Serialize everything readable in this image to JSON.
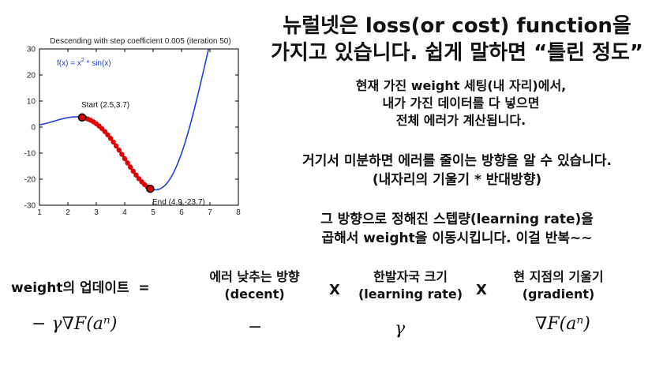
{
  "plot": {
    "title": "Descending with step coefficient 0.005 (iteration 50)",
    "formula_prefix": "f(x) = x",
    "formula_exp": "2",
    "formula_suffix": " * sin(x)",
    "start_label": "Start (2.5,3.7)",
    "end_label": "End (4.9,-23.7)",
    "colors": {
      "curve": "#1f3fd6",
      "path": "#e00000",
      "axis": "#000000",
      "formula": "#1f3fd6"
    }
  },
  "chart_data": {
    "type": "line",
    "title": "Descending with step coefficient 0.005 (iteration 50)",
    "xlim": [
      1,
      8
    ],
    "ylim": [
      -30,
      30
    ],
    "xticks": [
      1,
      2,
      3,
      4,
      5,
      6,
      7,
      8
    ],
    "yticks": [
      30,
      20,
      10,
      0,
      -10,
      -20,
      -30
    ],
    "xtick_labels": [
      "1",
      "2",
      "3",
      "4",
      "5",
      "6",
      "7",
      "8"
    ],
    "ytick_labels": [
      "30",
      "20",
      "10",
      "0",
      "-10",
      "-20",
      "-30"
    ],
    "function": "f(x) = x^2 * sin(x)",
    "start": {
      "x": 2.5,
      "y": 3.7
    },
    "end": {
      "x": 4.9,
      "y": -23.7
    },
    "descent_points_x": [
      2.5,
      2.6,
      2.7,
      2.8,
      2.9,
      3.0,
      3.1,
      3.2,
      3.3,
      3.4,
      3.5,
      3.6,
      3.7,
      3.8,
      3.9,
      4.0,
      4.1,
      4.2,
      4.3,
      4.4,
      4.5,
      4.6,
      4.7,
      4.8,
      4.9
    ]
  },
  "text": {
    "title_line1": "뉴럴넷은 loss(or cost) function을",
    "title_line2": "가지고 있습니다. 쉽게 말하면 “틀린 정도”",
    "p1_line1": "현재 가진 weight 세팅(내 자리)에서,",
    "p1_line2": "내가 가진 데이터를 다 넣으면",
    "p1_line3": "전체 에러가 계산됩니다.",
    "p2_line1": "거기서 미분하면 에러를 줄이는 방향을 알 수 있습니다.",
    "p2_line2": "(내자리의 기울기 * 반대방향)",
    "p3_line1": "그 방향으로 정해진 스텝량(learning rate)을",
    "p3_line2": "곱해서 weight을 이동시킵니다. 이걸 반복~~"
  },
  "update": {
    "label": "weight의 업데이트  =",
    "term1_line1": "에러 낮추는 방향",
    "term1_line2": "(decent)",
    "times1": "X",
    "term2_line1": "한발자국 크기",
    "term2_line2": "(learning rate)",
    "times2": "X",
    "term3_line1": "현 지점의 기울기",
    "term3_line2": "(gradient)"
  },
  "math": {
    "full": "− γ∇F(aⁿ)",
    "minus": "−",
    "gamma": "γ",
    "grad": "∇F(aⁿ)"
  }
}
